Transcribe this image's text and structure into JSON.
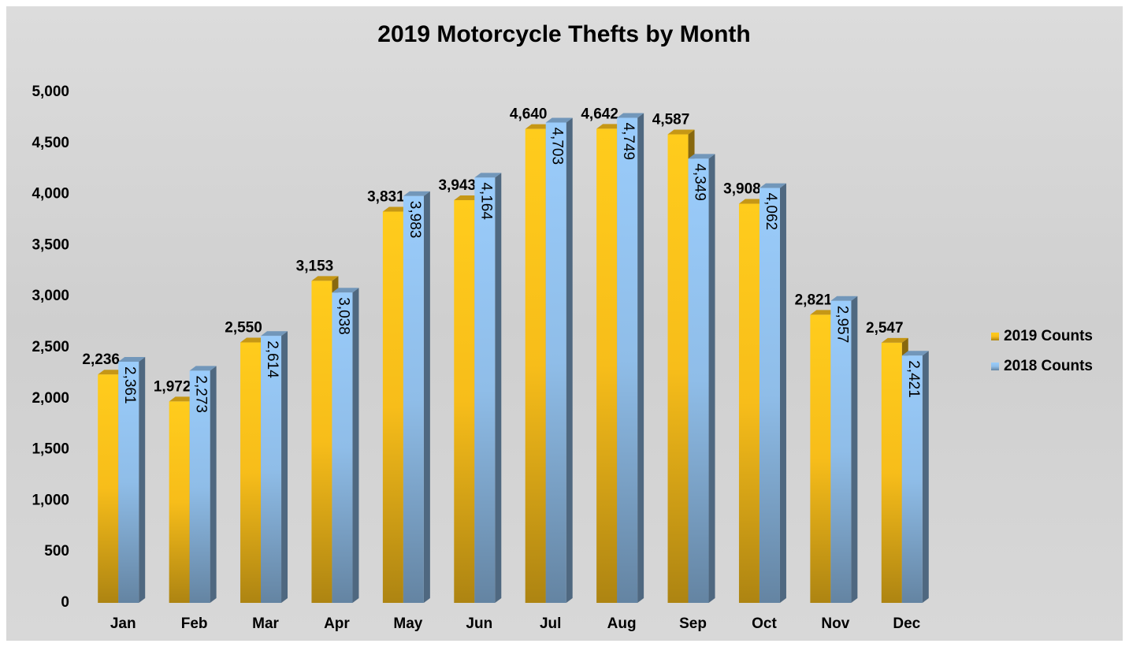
{
  "chart_data": {
    "type": "bar",
    "title": "2019 Motorcycle Thefts by Month",
    "categories": [
      "Jan",
      "Feb",
      "Mar",
      "Apr",
      "May",
      "Jun",
      "Jul",
      "Aug",
      "Sep",
      "Oct",
      "Nov",
      "Dec"
    ],
    "series": [
      {
        "name": "2019 Counts",
        "color": "#f7bd1a",
        "values": [
          2236,
          1972,
          2550,
          3153,
          3831,
          3943,
          4640,
          4642,
          4587,
          3908,
          2821,
          2547
        ],
        "value_labels": [
          "2,236",
          "1,972",
          "2,550",
          "3,153",
          "3,831",
          "3,943",
          "4,640",
          "4,642",
          "4,587",
          "3,908",
          "2,821",
          "2,547"
        ]
      },
      {
        "name": "2018 Counts",
        "color": "#8fbde8",
        "values": [
          2361,
          2273,
          2614,
          3038,
          3983,
          4164,
          4703,
          4749,
          4349,
          4062,
          2957,
          2421
        ],
        "value_labels": [
          "2,361",
          "2,273",
          "2,614",
          "3,038",
          "3,983",
          "4,164",
          "4,703",
          "4,749",
          "4,349",
          "4,062",
          "2,957",
          "2,421"
        ]
      }
    ],
    "ylim": [
      0,
      5000
    ],
    "yticks": [
      0,
      500,
      {
        "value": 1000,
        "label": "1,000"
      },
      {
        "value": 1500,
        "label": "1,500"
      },
      {
        "value": 2000,
        "label": "2,000"
      },
      {
        "value": 2500,
        "label": "2,500"
      },
      {
        "value": 3000,
        "label": "3,000"
      },
      {
        "value": 3500,
        "label": "3,500"
      },
      {
        "value": 4000,
        "label": "4,000"
      },
      {
        "value": 4500,
        "label": "4,500"
      },
      {
        "value": 5000,
        "label": "5,000"
      }
    ],
    "legend": "right"
  }
}
